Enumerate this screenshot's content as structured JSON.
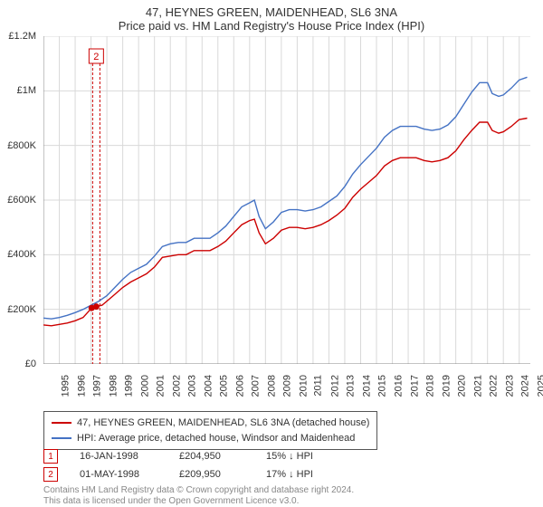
{
  "title_main": "47, HEYNES GREEN, MAIDENHEAD, SL6 3NA",
  "title_sub": "Price paid vs. HM Land Registry's House Price Index (HPI)",
  "chart": {
    "type": "line",
    "background_color": "#ffffff",
    "grid_color": "#d9d9d9",
    "axis_color": "#888888",
    "ylim": [
      0,
      1200000
    ],
    "ytick_step": 200000,
    "ytick_labels": [
      "£0",
      "£200K",
      "£400K",
      "£600K",
      "£800K",
      "£1M",
      "£1.2M"
    ],
    "xlim": [
      1995,
      2025.7
    ],
    "xticks": [
      1995,
      1996,
      1997,
      1998,
      1999,
      2000,
      2001,
      2002,
      2003,
      2004,
      2005,
      2006,
      2007,
      2008,
      2009,
      2010,
      2011,
      2012,
      2013,
      2014,
      2015,
      2016,
      2017,
      2018,
      2019,
      2020,
      2021,
      2022,
      2023,
      2024,
      2025
    ],
    "title_fontsize": 13,
    "tick_fontsize": 11,
    "series": [
      {
        "name": "property",
        "label": "47, HEYNES GREEN, MAIDENHEAD, SL6 3NA (detached house)",
        "color": "#cc0000",
        "line_width": 1.4,
        "data": [
          [
            1995,
            143000
          ],
          [
            1995.5,
            140000
          ],
          [
            1996,
            145000
          ],
          [
            1996.5,
            150000
          ],
          [
            1997,
            158000
          ],
          [
            1997.5,
            170000
          ],
          [
            1998.04,
            204950
          ],
          [
            1998.33,
            209950
          ],
          [
            1998.7,
            215000
          ],
          [
            1999,
            230000
          ],
          [
            1999.5,
            255000
          ],
          [
            2000,
            280000
          ],
          [
            2000.5,
            300000
          ],
          [
            2001,
            315000
          ],
          [
            2001.5,
            330000
          ],
          [
            2002,
            355000
          ],
          [
            2002.5,
            390000
          ],
          [
            2003,
            395000
          ],
          [
            2003.5,
            400000
          ],
          [
            2004,
            400000
          ],
          [
            2004.5,
            415000
          ],
          [
            2005,
            415000
          ],
          [
            2005.5,
            415000
          ],
          [
            2006,
            430000
          ],
          [
            2006.5,
            450000
          ],
          [
            2007,
            480000
          ],
          [
            2007.5,
            510000
          ],
          [
            2008,
            525000
          ],
          [
            2008.3,
            530000
          ],
          [
            2008.6,
            480000
          ],
          [
            2009,
            440000
          ],
          [
            2009.5,
            460000
          ],
          [
            2010,
            490000
          ],
          [
            2010.5,
            500000
          ],
          [
            2011,
            500000
          ],
          [
            2011.5,
            495000
          ],
          [
            2012,
            500000
          ],
          [
            2012.5,
            510000
          ],
          [
            2013,
            525000
          ],
          [
            2013.5,
            545000
          ],
          [
            2014,
            570000
          ],
          [
            2014.5,
            610000
          ],
          [
            2015,
            640000
          ],
          [
            2015.5,
            665000
          ],
          [
            2016,
            690000
          ],
          [
            2016.5,
            725000
          ],
          [
            2017,
            745000
          ],
          [
            2017.5,
            755000
          ],
          [
            2018,
            755000
          ],
          [
            2018.5,
            755000
          ],
          [
            2019,
            745000
          ],
          [
            2019.5,
            740000
          ],
          [
            2020,
            745000
          ],
          [
            2020.5,
            755000
          ],
          [
            2021,
            780000
          ],
          [
            2021.5,
            820000
          ],
          [
            2022,
            855000
          ],
          [
            2022.5,
            885000
          ],
          [
            2023,
            885000
          ],
          [
            2023.3,
            855000
          ],
          [
            2023.7,
            845000
          ],
          [
            2024,
            850000
          ],
          [
            2024.5,
            870000
          ],
          [
            2025,
            895000
          ],
          [
            2025.5,
            900000
          ]
        ]
      },
      {
        "name": "hpi",
        "label": "HPI: Average price, detached house, Windsor and Maidenhead",
        "color": "#4472c4",
        "line_width": 1.4,
        "data": [
          [
            1995,
            168000
          ],
          [
            1995.5,
            165000
          ],
          [
            1996,
            170000
          ],
          [
            1996.5,
            178000
          ],
          [
            1997,
            188000
          ],
          [
            1997.5,
            200000
          ],
          [
            1998,
            215000
          ],
          [
            1998.5,
            230000
          ],
          [
            1999,
            250000
          ],
          [
            1999.5,
            280000
          ],
          [
            2000,
            310000
          ],
          [
            2000.5,
            335000
          ],
          [
            2001,
            350000
          ],
          [
            2001.5,
            365000
          ],
          [
            2002,
            395000
          ],
          [
            2002.5,
            430000
          ],
          [
            2003,
            440000
          ],
          [
            2003.5,
            445000
          ],
          [
            2004,
            445000
          ],
          [
            2004.5,
            460000
          ],
          [
            2005,
            460000
          ],
          [
            2005.5,
            460000
          ],
          [
            2006,
            480000
          ],
          [
            2006.5,
            505000
          ],
          [
            2007,
            540000
          ],
          [
            2007.5,
            575000
          ],
          [
            2008,
            590000
          ],
          [
            2008.3,
            600000
          ],
          [
            2008.6,
            540000
          ],
          [
            2009,
            495000
          ],
          [
            2009.5,
            520000
          ],
          [
            2010,
            555000
          ],
          [
            2010.5,
            565000
          ],
          [
            2011,
            565000
          ],
          [
            2011.5,
            560000
          ],
          [
            2012,
            565000
          ],
          [
            2012.5,
            575000
          ],
          [
            2013,
            595000
          ],
          [
            2013.5,
            615000
          ],
          [
            2014,
            650000
          ],
          [
            2014.5,
            695000
          ],
          [
            2015,
            730000
          ],
          [
            2015.5,
            760000
          ],
          [
            2016,
            790000
          ],
          [
            2016.5,
            830000
          ],
          [
            2017,
            855000
          ],
          [
            2017.5,
            870000
          ],
          [
            2018,
            870000
          ],
          [
            2018.5,
            870000
          ],
          [
            2019,
            860000
          ],
          [
            2019.5,
            855000
          ],
          [
            2020,
            860000
          ],
          [
            2020.5,
            875000
          ],
          [
            2021,
            905000
          ],
          [
            2021.5,
            950000
          ],
          [
            2022,
            995000
          ],
          [
            2022.5,
            1030000
          ],
          [
            2023,
            1030000
          ],
          [
            2023.3,
            990000
          ],
          [
            2023.7,
            980000
          ],
          [
            2024,
            985000
          ],
          [
            2024.5,
            1010000
          ],
          [
            2025,
            1040000
          ],
          [
            2025.5,
            1050000
          ]
        ]
      }
    ],
    "markers": {
      "color": "#cc0000",
      "border_color": "#cc0000",
      "label_line_color": "#cc0000",
      "label_line_dash": "3,2",
      "points": [
        {
          "n": 1,
          "year": 1998.04,
          "price": 204950
        },
        {
          "n": 2,
          "year": 1998.33,
          "price": 209950
        }
      ],
      "callout": {
        "n": 2,
        "x": 1998.33,
        "label_y_top": 14
      }
    }
  },
  "legend": {
    "border_color": "#555555",
    "fontsize": 11
  },
  "marker_table": {
    "rows": [
      {
        "n": "1",
        "date": "16-JAN-1998",
        "price": "£204,950",
        "delta": "15% ↓ HPI"
      },
      {
        "n": "2",
        "date": "01-MAY-1998",
        "price": "£209,950",
        "delta": "17% ↓ HPI"
      }
    ],
    "chip_border_color": "#cc0000"
  },
  "attribution": {
    "line1": "Contains HM Land Registry data © Crown copyright and database right 2024.",
    "line2": "This data is licensed under the Open Government Licence v3.0.",
    "color": "#888888",
    "fontsize": 10
  }
}
